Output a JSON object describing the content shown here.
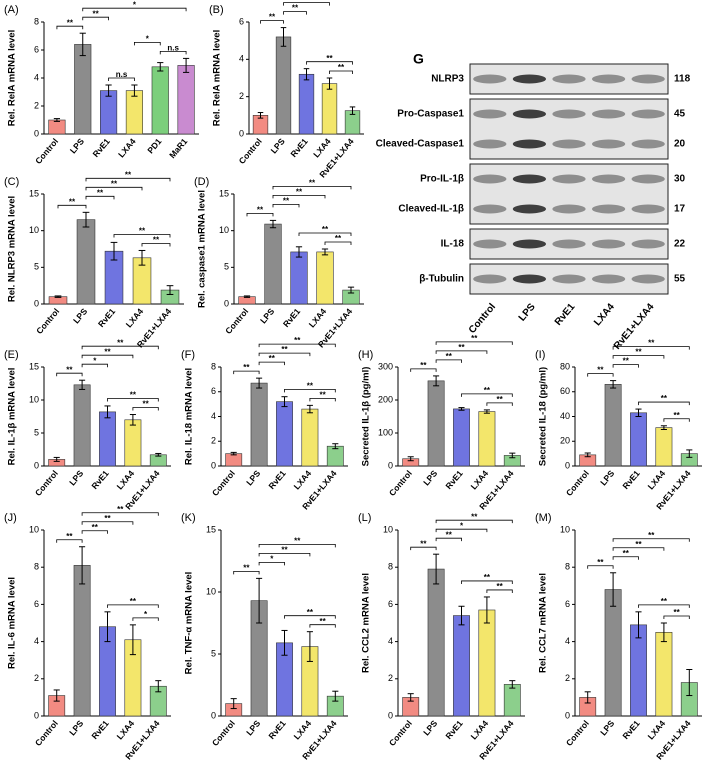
{
  "chart_data": [
    {
      "type": "bar",
      "label": "(A)",
      "y_label": "Rel. RelA mRNA level",
      "categories": [
        "Control",
        "LPS",
        "RvE1",
        "LXA4",
        "PD1",
        "MaR1"
      ],
      "values": [
        1.0,
        6.4,
        3.1,
        3.1,
        4.8,
        4.9
      ],
      "errors": [
        0.1,
        0.8,
        0.4,
        0.4,
        0.3,
        0.5
      ],
      "colors": [
        "#f28b82",
        "#8c8c8c",
        "#6f74e0",
        "#f3e66b",
        "#7ccf7c",
        "#c98bd0"
      ],
      "ylim": [
        0,
        8
      ],
      "yticks": [
        0,
        2,
        4,
        6,
        8
      ],
      "significance": [
        {
          "between": [
            "RvE1",
            "LXA4"
          ],
          "label": "n.s"
        },
        {
          "between": [
            "PD1",
            "MaR1"
          ],
          "label": "n.s"
        },
        {
          "between": [
            "LXA4",
            "PD1"
          ],
          "label": "*"
        },
        {
          "between": [
            "Control",
            "LPS"
          ],
          "label": "**"
        },
        {
          "between": [
            "LPS",
            "RvE1"
          ],
          "label": "**"
        },
        {
          "between": [
            "LPS",
            "MaR1"
          ],
          "label": "*"
        }
      ]
    },
    {
      "type": "bar",
      "label": "(B)",
      "y_label": "Rel. RelA mRNA level",
      "categories": [
        "Control",
        "LPS",
        "RvE1",
        "LXA4",
        "RvE1+LXA4"
      ],
      "values": [
        1.0,
        5.2,
        3.2,
        2.7,
        1.25
      ],
      "errors": [
        0.15,
        0.5,
        0.3,
        0.3,
        0.2
      ],
      "colors": [
        "#f28b82",
        "#8c8c8c",
        "#6f74e0",
        "#f3e66b",
        "#8ccf8c"
      ],
      "ylim": [
        0,
        6
      ],
      "yticks": [
        0,
        2,
        4,
        6
      ],
      "significance": [
        {
          "between": [
            "LXA4",
            "RvE1+LXA4"
          ],
          "label": "**"
        },
        {
          "between": [
            "RvE1",
            "RvE1+LXA4"
          ],
          "label": "**"
        },
        {
          "between": [
            "Control",
            "LPS"
          ],
          "label": "**"
        },
        {
          "between": [
            "LPS",
            "RvE1"
          ],
          "label": "**"
        },
        {
          "between": [
            "LPS",
            "LXA4"
          ],
          "label": "**"
        },
        {
          "between": [
            "LPS",
            "RvE1+LXA4"
          ],
          "label": "**"
        }
      ]
    },
    {
      "type": "bar",
      "label": "(C)",
      "y_label": "Rel. NLRP3 mRNA level",
      "categories": [
        "Control",
        "LPS",
        "RvE1",
        "LXA4",
        "RvE1+LXA4"
      ],
      "values": [
        1.0,
        11.5,
        7.2,
        6.3,
        1.9
      ],
      "errors": [
        0.1,
        1.0,
        1.2,
        1.0,
        0.6
      ],
      "colors": [
        "#f28b82",
        "#8c8c8c",
        "#6f74e0",
        "#f3e66b",
        "#8ccf8c"
      ],
      "ylim": [
        0,
        15
      ],
      "yticks": [
        0,
        5,
        10,
        15
      ],
      "significance": [
        {
          "between": [
            "LXA4",
            "RvE1+LXA4"
          ],
          "label": "**"
        },
        {
          "between": [
            "RvE1",
            "RvE1+LXA4"
          ],
          "label": "**"
        },
        {
          "between": [
            "Control",
            "LPS"
          ],
          "label": "**"
        },
        {
          "between": [
            "LPS",
            "RvE1"
          ],
          "label": "**"
        },
        {
          "between": [
            "LPS",
            "LXA4"
          ],
          "label": "**"
        },
        {
          "between": [
            "LPS",
            "RvE1+LXA4"
          ],
          "label": "**"
        }
      ]
    },
    {
      "type": "bar",
      "label": "(D)",
      "y_label": "Rel. caspase1 mRNA level",
      "categories": [
        "Control",
        "LPS",
        "RvE1",
        "LXA4",
        "RvE1+LXA4"
      ],
      "values": [
        1.0,
        10.9,
        7.1,
        7.1,
        1.9
      ],
      "errors": [
        0.1,
        0.5,
        0.7,
        0.4,
        0.4
      ],
      "colors": [
        "#f28b82",
        "#8c8c8c",
        "#6f74e0",
        "#f3e66b",
        "#8ccf8c"
      ],
      "ylim": [
        0,
        15
      ],
      "yticks": [
        0,
        5,
        10,
        15
      ],
      "significance": [
        {
          "between": [
            "LXA4",
            "RvE1+LXA4"
          ],
          "label": "**"
        },
        {
          "between": [
            "RvE1",
            "RvE1+LXA4"
          ],
          "label": "**"
        },
        {
          "between": [
            "Control",
            "LPS"
          ],
          "label": "**"
        },
        {
          "between": [
            "LPS",
            "RvE1"
          ],
          "label": "**"
        },
        {
          "between": [
            "LPS",
            "LXA4"
          ],
          "label": "**"
        },
        {
          "between": [
            "LPS",
            "RvE1+LXA4"
          ],
          "label": "**"
        }
      ]
    },
    {
      "type": "bar",
      "label": "(E)",
      "y_label": "Rel. IL-1β  mRNA level",
      "categories": [
        "Control",
        "LPS",
        "RvE1",
        "LXA4",
        "RvE1+LXA4"
      ],
      "values": [
        1.0,
        12.3,
        8.2,
        7.0,
        1.7
      ],
      "errors": [
        0.3,
        0.7,
        0.9,
        0.8,
        0.2
      ],
      "colors": [
        "#f28b82",
        "#8c8c8c",
        "#6f74e0",
        "#f3e66b",
        "#8ccf8c"
      ],
      "ylim": [
        0,
        15
      ],
      "yticks": [
        0,
        5,
        10,
        15
      ],
      "significance": [
        {
          "between": [
            "LXA4",
            "RvE1+LXA4"
          ],
          "label": "**"
        },
        {
          "between": [
            "RvE1",
            "RvE1+LXA4"
          ],
          "label": "**"
        },
        {
          "between": [
            "Control",
            "LPS"
          ],
          "label": "**"
        },
        {
          "between": [
            "LPS",
            "RvE1"
          ],
          "label": "*"
        },
        {
          "between": [
            "LPS",
            "LXA4"
          ],
          "label": "**"
        },
        {
          "between": [
            "LPS",
            "RvE1+LXA4"
          ],
          "label": "**"
        }
      ]
    },
    {
      "type": "bar",
      "label": "(F)",
      "y_label": "Rel. IL-18 mRNA level",
      "categories": [
        "Control",
        "LPS",
        "RvE1",
        "LXA4",
        "RvE1+LXA4"
      ],
      "values": [
        1.0,
        6.7,
        5.2,
        4.6,
        1.6
      ],
      "errors": [
        0.1,
        0.4,
        0.4,
        0.3,
        0.2
      ],
      "colors": [
        "#f28b82",
        "#8c8c8c",
        "#6f74e0",
        "#f3e66b",
        "#8ccf8c"
      ],
      "ylim": [
        0,
        8
      ],
      "yticks": [
        0,
        2,
        4,
        6,
        8
      ],
      "significance": [
        {
          "between": [
            "LXA4",
            "RvE1+LXA4"
          ],
          "label": "**"
        },
        {
          "between": [
            "RvE1",
            "RvE1+LXA4"
          ],
          "label": "**"
        },
        {
          "between": [
            "Control",
            "LPS"
          ],
          "label": "**"
        },
        {
          "between": [
            "LPS",
            "RvE1"
          ],
          "label": "**"
        },
        {
          "between": [
            "LPS",
            "LXA4"
          ],
          "label": "**"
        },
        {
          "between": [
            "LPS",
            "RvE1+LXA4"
          ],
          "label": "**"
        }
      ]
    },
    {
      "type": "bar",
      "label": "(H)",
      "y_label": "Secreted IL-1β  (pg/ml)",
      "categories": [
        "Control",
        "LPS",
        "RvE1",
        "LXA4",
        "RvE1+LXA4"
      ],
      "values": [
        22,
        258,
        173,
        165,
        32
      ],
      "errors": [
        6,
        15,
        4,
        5,
        7
      ],
      "colors": [
        "#f28b82",
        "#8c8c8c",
        "#6f74e0",
        "#f3e66b",
        "#8ccf8c"
      ],
      "ylim": [
        0,
        300
      ],
      "yticks": [
        0,
        100,
        200,
        300
      ],
      "significance": [
        {
          "between": [
            "LXA4",
            "RvE1+LXA4"
          ],
          "label": "**"
        },
        {
          "between": [
            "RvE1",
            "RvE1+LXA4"
          ],
          "label": "**"
        },
        {
          "between": [
            "Control",
            "LPS"
          ],
          "label": "**"
        },
        {
          "between": [
            "LPS",
            "RvE1"
          ],
          "label": "**"
        },
        {
          "between": [
            "LPS",
            "LXA4"
          ],
          "label": "**"
        },
        {
          "between": [
            "LPS",
            "RvE1+LXA4"
          ],
          "label": "**"
        }
      ]
    },
    {
      "type": "bar",
      "label": "(I)",
      "y_label": "Secreted IL-18 (pg/ml)",
      "categories": [
        "Control",
        "LPS",
        "RvE1",
        "LXA4",
        "RvE1+LXA4"
      ],
      "values": [
        9,
        66,
        43,
        31,
        10
      ],
      "errors": [
        1.5,
        3,
        3,
        1.5,
        3
      ],
      "colors": [
        "#f28b82",
        "#8c8c8c",
        "#6f74e0",
        "#f3e66b",
        "#8ccf8c"
      ],
      "ylim": [
        0,
        80
      ],
      "yticks": [
        0,
        20,
        40,
        60,
        80
      ],
      "significance": [
        {
          "between": [
            "LXA4",
            "RvE1+LXA4"
          ],
          "label": "**"
        },
        {
          "between": [
            "RvE1",
            "RvE1+LXA4"
          ],
          "label": "**"
        },
        {
          "between": [
            "Control",
            "LPS"
          ],
          "label": "**"
        },
        {
          "between": [
            "LPS",
            "RvE1"
          ],
          "label": "**"
        },
        {
          "between": [
            "LPS",
            "LXA4"
          ],
          "label": "**"
        },
        {
          "between": [
            "LPS",
            "RvE1+LXA4"
          ],
          "label": "**"
        }
      ]
    },
    {
      "type": "bar",
      "label": "(J)",
      "y_label": "Rel. IL-6 mRNA level",
      "categories": [
        "Control",
        "LPS",
        "RvE1",
        "LXA4",
        "RvE1+LXA4"
      ],
      "values": [
        1.1,
        8.1,
        4.8,
        4.1,
        1.6
      ],
      "errors": [
        0.3,
        1.0,
        0.8,
        0.8,
        0.3
      ],
      "colors": [
        "#f28b82",
        "#8c8c8c",
        "#6f74e0",
        "#f3e66b",
        "#8ccf8c"
      ],
      "ylim": [
        0,
        10
      ],
      "yticks": [
        0,
        2,
        4,
        6,
        8,
        10
      ],
      "significance": [
        {
          "between": [
            "LXA4",
            "RvE1+LXA4"
          ],
          "label": "*"
        },
        {
          "between": [
            "RvE1",
            "RvE1+LXA4"
          ],
          "label": "**"
        },
        {
          "between": [
            "Control",
            "LPS"
          ],
          "label": "**"
        },
        {
          "between": [
            "LPS",
            "RvE1"
          ],
          "label": "**"
        },
        {
          "between": [
            "LPS",
            "LXA4"
          ],
          "label": "**"
        },
        {
          "between": [
            "LPS",
            "RvE1+LXA4"
          ],
          "label": "**"
        }
      ]
    },
    {
      "type": "bar",
      "label": "(K)",
      "y_label": "Rel. TNF-α mRNA level",
      "categories": [
        "Control",
        "LPS",
        "RvE1",
        "LXA4",
        "RvE1+LXA4"
      ],
      "values": [
        1.0,
        9.3,
        5.9,
        5.6,
        1.6
      ],
      "errors": [
        0.4,
        1.8,
        1.0,
        1.2,
        0.4
      ],
      "colors": [
        "#f28b82",
        "#8c8c8c",
        "#6f74e0",
        "#f3e66b",
        "#8ccf8c"
      ],
      "ylim": [
        0,
        15
      ],
      "yticks": [
        0,
        5,
        10,
        15
      ],
      "significance": [
        {
          "between": [
            "LXA4",
            "RvE1+LXA4"
          ],
          "label": "**"
        },
        {
          "between": [
            "RvE1",
            "RvE1+LXA4"
          ],
          "label": "**"
        },
        {
          "between": [
            "Control",
            "LPS"
          ],
          "label": "**"
        },
        {
          "between": [
            "LPS",
            "RvE1"
          ],
          "label": "*"
        },
        {
          "between": [
            "LPS",
            "LXA4"
          ],
          "label": "**"
        },
        {
          "between": [
            "LPS",
            "RvE1+LXA4"
          ],
          "label": "**"
        }
      ]
    },
    {
      "type": "bar",
      "label": "(L)",
      "y_label": "Rel. CCL2 mRNA level",
      "categories": [
        "Control",
        "LPS",
        "RvE1",
        "LXA4",
        "RvE1+LXA4"
      ],
      "values": [
        1.0,
        7.9,
        5.4,
        5.7,
        1.7
      ],
      "errors": [
        0.2,
        0.8,
        0.5,
        0.7,
        0.2
      ],
      "colors": [
        "#f28b82",
        "#8c8c8c",
        "#6f74e0",
        "#f3e66b",
        "#8ccf8c"
      ],
      "ylim": [
        0,
        10
      ],
      "yticks": [
        0,
        2,
        4,
        6,
        8,
        10
      ],
      "significance": [
        {
          "between": [
            "LXA4",
            "RvE1+LXA4"
          ],
          "label": "**"
        },
        {
          "between": [
            "RvE1",
            "RvE1+LXA4"
          ],
          "label": "**"
        },
        {
          "between": [
            "Control",
            "LPS"
          ],
          "label": "**"
        },
        {
          "between": [
            "LPS",
            "RvE1"
          ],
          "label": "**"
        },
        {
          "between": [
            "LPS",
            "LXA4"
          ],
          "label": "*"
        },
        {
          "between": [
            "LPS",
            "RvE1+LXA4"
          ],
          "label": "**"
        }
      ]
    },
    {
      "type": "bar",
      "label": "(M)",
      "y_label": "Rel. CCL7 mRNA level",
      "categories": [
        "Control",
        "LPS",
        "RvE1",
        "LXA4",
        "RvE1+LXA4"
      ],
      "values": [
        1.0,
        6.8,
        4.9,
        4.5,
        1.8
      ],
      "errors": [
        0.3,
        0.9,
        0.7,
        0.5,
        0.7
      ],
      "colors": [
        "#f28b82",
        "#8c8c8c",
        "#6f74e0",
        "#f3e66b",
        "#8ccf8c"
      ],
      "ylim": [
        0,
        10
      ],
      "yticks": [
        0,
        2,
        4,
        6,
        8,
        10
      ],
      "significance": [
        {
          "between": [
            "LXA4",
            "RvE1+LXA4"
          ],
          "label": "**"
        },
        {
          "between": [
            "RvE1",
            "RvE1+LXA4"
          ],
          "label": "**"
        },
        {
          "between": [
            "Control",
            "LPS"
          ],
          "label": "**"
        },
        {
          "between": [
            "LPS",
            "RvE1"
          ],
          "label": "**"
        },
        {
          "between": [
            "LPS",
            "LXA4"
          ],
          "label": "**"
        },
        {
          "between": [
            "LPS",
            "RvE1+LXA4"
          ],
          "label": "**"
        }
      ]
    }
  ],
  "blot": {
    "label": "G",
    "groups": [
      [
        {
          "protein": "NLRP3",
          "kda": "118"
        }
      ],
      [
        {
          "protein": "Pro-Caspase1",
          "kda": "45"
        },
        {
          "protein": "Cleaved-Caspase1",
          "kda": "20"
        }
      ],
      [
        {
          "protein": "Pro-IL-1β",
          "kda": "30"
        },
        {
          "protein": "Cleaved-IL-1β",
          "kda": "17"
        }
      ],
      [
        {
          "protein": "IL-18",
          "kda": "22"
        }
      ],
      [
        {
          "protein": "β-Tubulin",
          "kda": "55"
        }
      ]
    ],
    "lanes": [
      "Control",
      "LPS",
      "RvE1",
      "LXA4",
      "RvE1+LXA4"
    ]
  }
}
